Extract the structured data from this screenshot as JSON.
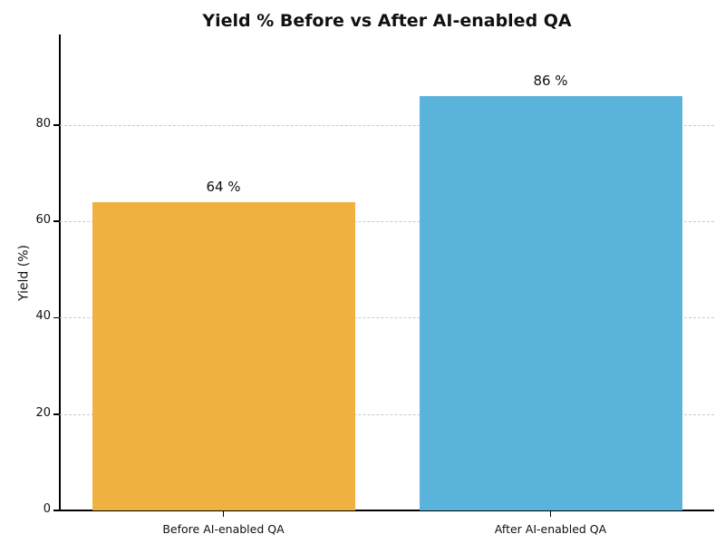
{
  "chart_data": {
    "type": "bar",
    "title": "Yield % Before vs After AI-enabled QA",
    "categories": [
      "Before AI-enabled QA",
      "After AI-enabled QA"
    ],
    "values": [
      64,
      86
    ],
    "bar_value_labels": [
      "64 %",
      "86 %"
    ],
    "bar_colors": [
      "#EFB140",
      "#5AB3DB"
    ],
    "xlabel": "",
    "ylabel": "Yield (%)",
    "ylim": [
      0,
      98.8
    ],
    "yticks": [
      0,
      20,
      40,
      60,
      80
    ],
    "grid": "horizontal dashed",
    "gridline_color": "#c9c9c9",
    "legend": "none"
  }
}
